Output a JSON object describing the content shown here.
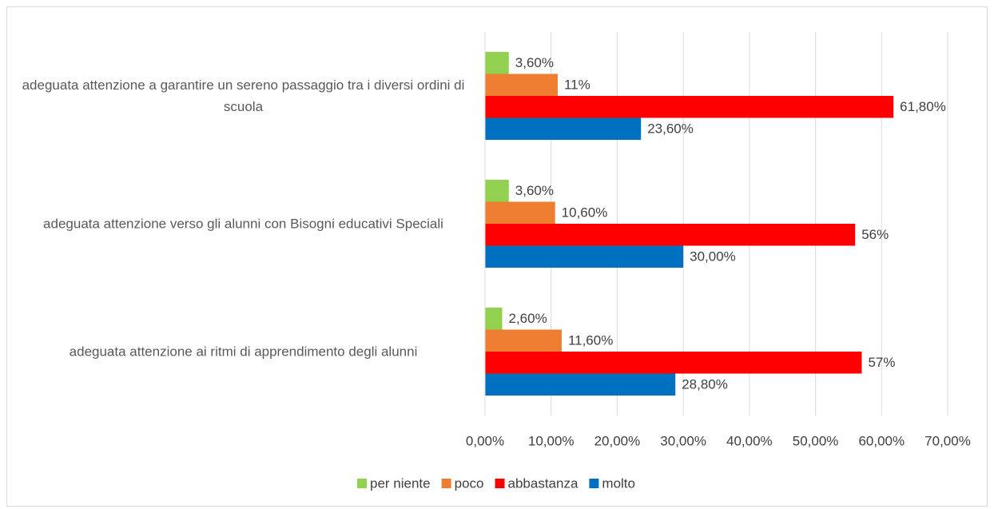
{
  "chart_data": {
    "type": "hbar",
    "categories": [
      "adeguata attenzione a garantire un sereno passaggio tra i diversi ordini di scuola",
      "adeguata attenzione verso gli alunni con Bisogni educativi Speciali",
      "adeguata attenzione ai ritmi di apprendimento degli alunni"
    ],
    "series": [
      {
        "name": "per niente",
        "color": "#92d050",
        "values": [
          3.6,
          3.6,
          2.6
        ],
        "value_labels": [
          "3,60%",
          "3,60%",
          "2,60%"
        ]
      },
      {
        "name": "poco",
        "color": "#ed7d31",
        "values": [
          11,
          10.6,
          11.6
        ],
        "value_labels": [
          "11%",
          "10,60%",
          "11,60%"
        ]
      },
      {
        "name": "abbastanza",
        "color": "#ff0000",
        "values": [
          61.8,
          56,
          57
        ],
        "value_labels": [
          "61,80%",
          "56%",
          "57%"
        ]
      },
      {
        "name": "molto",
        "color": "#0070c0",
        "values": [
          23.6,
          30,
          28.8
        ],
        "value_labels": [
          "23,60%",
          "30,00%",
          "28,80%"
        ]
      }
    ],
    "xlim": [
      0,
      70
    ],
    "xticks": [
      {
        "value": 0,
        "label": "0,00%"
      },
      {
        "value": 10,
        "label": "10,00%"
      },
      {
        "value": 20,
        "label": "20,00%"
      },
      {
        "value": 30,
        "label": "30,00%"
      },
      {
        "value": 40,
        "label": "40,00%"
      },
      {
        "value": 50,
        "label": "50,00%"
      },
      {
        "value": 60,
        "label": "60,00%"
      },
      {
        "value": 70,
        "label": "70,00%"
      }
    ],
    "grid": true,
    "legend": "bottom"
  }
}
